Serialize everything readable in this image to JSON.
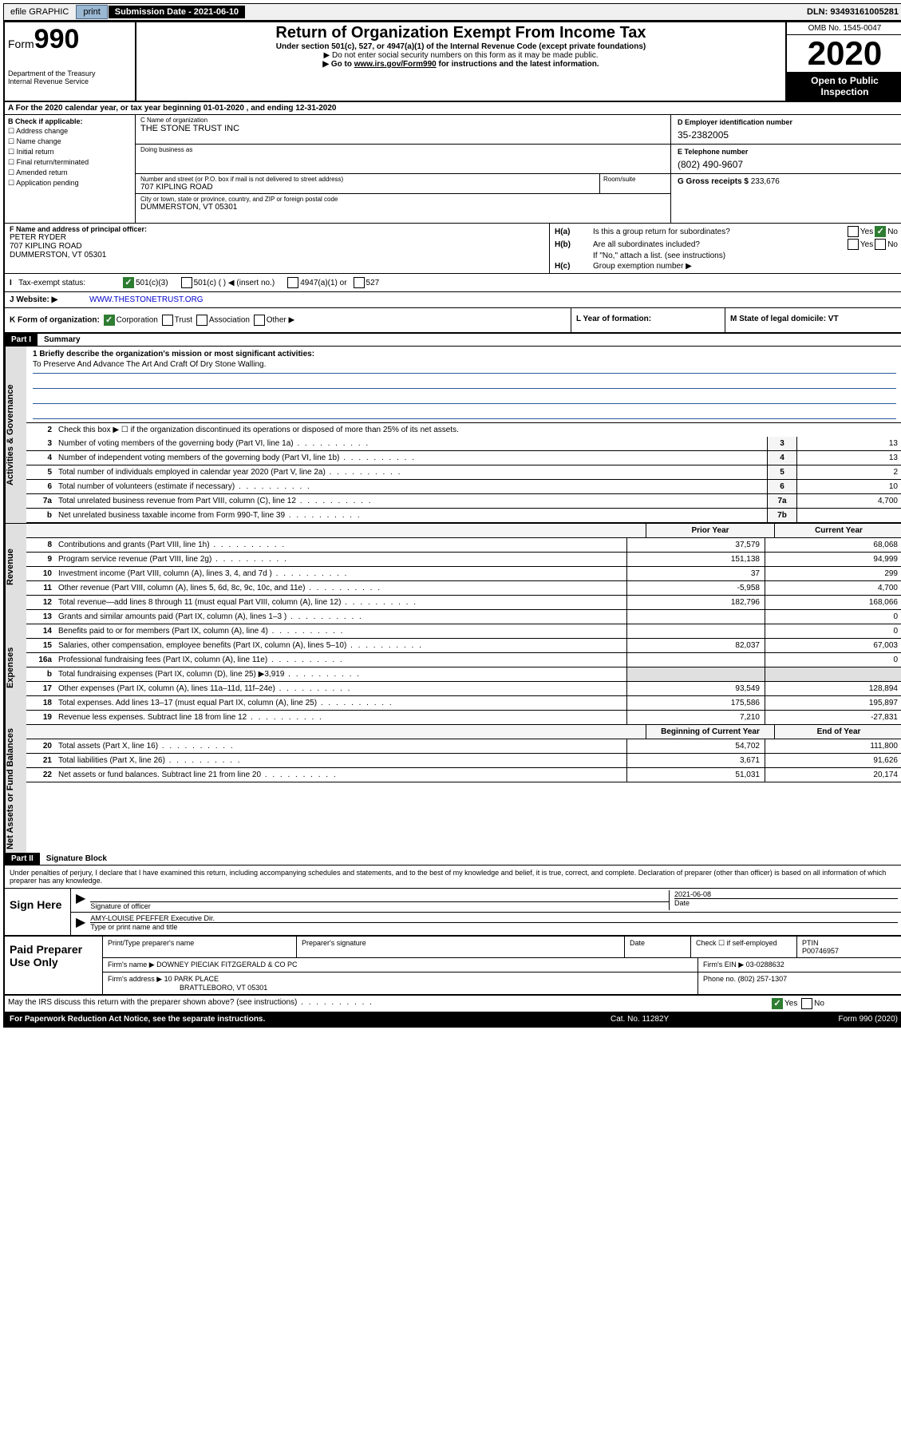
{
  "topbar": {
    "efile": "efile GRAPHIC",
    "print": "print",
    "submission": "Submission Date - 2021-06-10",
    "dln": "DLN: 93493161005281"
  },
  "header": {
    "form_label": "Form",
    "form_number": "990",
    "dept": "Department of the Treasury",
    "irs": "Internal Revenue Service",
    "title": "Return of Organization Exempt From Income Tax",
    "sub1": "Under section 501(c), 527, or 4947(a)(1) of the Internal Revenue Code (except private foundations)",
    "sub2": "▶ Do not enter social security numbers on this form as it may be made public.",
    "sub3_pre": "▶ Go to ",
    "sub3_link": "www.irs.gov/Form990",
    "sub3_post": " for instructions and the latest information.",
    "omb": "OMB No. 1545-0047",
    "year": "2020",
    "open": "Open to Public Inspection"
  },
  "lineA": "A For the 2020 calendar year, or tax year beginning 01-01-2020   , and ending 12-31-2020",
  "boxB": {
    "label": "B Check if applicable:",
    "opts": [
      "Address change",
      "Name change",
      "Initial return",
      "Final return/terminated",
      "Amended return",
      "Application pending"
    ]
  },
  "boxC": {
    "name_label": "C Name of organization",
    "name": "THE STONE TRUST INC",
    "dba_label": "Doing business as",
    "addr_label": "Number and street (or P.O. box if mail is not delivered to street address)",
    "addr": "707 KIPLING ROAD",
    "suite_label": "Room/suite",
    "city_label": "City or town, state or province, country, and ZIP or foreign postal code",
    "city": "DUMMERSTON, VT  05301"
  },
  "boxD": {
    "ein_label": "D Employer identification number",
    "ein": "35-2382005",
    "phone_label": "E Telephone number",
    "phone": "(802) 490-9607",
    "gross_label": "G Gross receipts $",
    "gross": "233,676"
  },
  "boxF": {
    "label": "F  Name and address of principal officer:",
    "name": "PETER RYDER",
    "addr1": "707 KIPLING ROAD",
    "addr2": "DUMMERSTON, VT  05301"
  },
  "boxH": {
    "ha": "Is this a group return for subordinates?",
    "hb": "Are all subordinates included?",
    "hb_note": "If \"No,\" attach a list. (see instructions)",
    "hc": "Group exemption number ▶"
  },
  "taxExempt": {
    "label": "Tax-exempt status:",
    "o1": "501(c)(3)",
    "o2": "501(c) (   ) ◀ (insert no.)",
    "o3": "4947(a)(1) or",
    "o4": "527"
  },
  "website": {
    "label": "J   Website: ▶",
    "url": "WWW.THESTONETRUST.ORG"
  },
  "rowK": {
    "k": "K Form of organization:",
    "corp": "Corporation",
    "trust": "Trust",
    "assoc": "Association",
    "other": "Other ▶",
    "l": "L Year of formation:",
    "m": "M State of legal domicile: VT"
  },
  "part1": {
    "header": "Part I",
    "title": "Summary",
    "line1_label": "1  Briefly describe the organization's mission or most significant activities:",
    "mission": "To Preserve And Advance The Art And Craft Of Dry Stone Walling.",
    "side_ag": "Activities & Governance",
    "side_rev": "Revenue",
    "side_exp": "Expenses",
    "side_net": "Net Assets or Fund Balances",
    "line2": "Check this box ▶ ☐  if the organization discontinued its operations or disposed of more than 25% of its net assets.",
    "rows_ag": [
      {
        "n": "3",
        "desc": "Number of voting members of the governing body (Part VI, line 1a)",
        "key": "3",
        "val": "13"
      },
      {
        "n": "4",
        "desc": "Number of independent voting members of the governing body (Part VI, line 1b)",
        "key": "4",
        "val": "13"
      },
      {
        "n": "5",
        "desc": "Total number of individuals employed in calendar year 2020 (Part V, line 2a)",
        "key": "5",
        "val": "2"
      },
      {
        "n": "6",
        "desc": "Total number of volunteers (estimate if necessary)",
        "key": "6",
        "val": "10"
      },
      {
        "n": "7a",
        "desc": "Total unrelated business revenue from Part VIII, column (C), line 12",
        "key": "7a",
        "val": "4,700"
      },
      {
        "n": "b",
        "desc": "Net unrelated business taxable income from Form 990-T, line 39",
        "key": "7b",
        "val": ""
      }
    ],
    "hdr_prior": "Prior Year",
    "hdr_current": "Current Year",
    "rows_rev": [
      {
        "n": "8",
        "desc": "Contributions and grants (Part VIII, line 1h)",
        "v1": "37,579",
        "v2": "68,068"
      },
      {
        "n": "9",
        "desc": "Program service revenue (Part VIII, line 2g)",
        "v1": "151,138",
        "v2": "94,999"
      },
      {
        "n": "10",
        "desc": "Investment income (Part VIII, column (A), lines 3, 4, and 7d )",
        "v1": "37",
        "v2": "299"
      },
      {
        "n": "11",
        "desc": "Other revenue (Part VIII, column (A), lines 5, 6d, 8c, 9c, 10c, and 11e)",
        "v1": "-5,958",
        "v2": "4,700"
      },
      {
        "n": "12",
        "desc": "Total revenue—add lines 8 through 11 (must equal Part VIII, column (A), line 12)",
        "v1": "182,796",
        "v2": "168,066"
      }
    ],
    "rows_exp": [
      {
        "n": "13",
        "desc": "Grants and similar amounts paid (Part IX, column (A), lines 1–3 )",
        "v1": "",
        "v2": "0"
      },
      {
        "n": "14",
        "desc": "Benefits paid to or for members (Part IX, column (A), line 4)",
        "v1": "",
        "v2": "0"
      },
      {
        "n": "15",
        "desc": "Salaries, other compensation, employee benefits (Part IX, column (A), lines 5–10)",
        "v1": "82,037",
        "v2": "67,003"
      },
      {
        "n": "16a",
        "desc": "Professional fundraising fees (Part IX, column (A), line 11e)",
        "v1": "",
        "v2": "0"
      },
      {
        "n": "b",
        "desc": "Total fundraising expenses (Part IX, column (D), line 25) ▶3,919",
        "v1": "",
        "v2": "",
        "shaded": true
      },
      {
        "n": "17",
        "desc": "Other expenses (Part IX, column (A), lines 11a–11d, 11f–24e)",
        "v1": "93,549",
        "v2": "128,894"
      },
      {
        "n": "18",
        "desc": "Total expenses. Add lines 13–17 (must equal Part IX, column (A), line 25)",
        "v1": "175,586",
        "v2": "195,897"
      },
      {
        "n": "19",
        "desc": "Revenue less expenses. Subtract line 18 from line 12",
        "v1": "7,210",
        "v2": "-27,831"
      }
    ],
    "hdr_begin": "Beginning of Current Year",
    "hdr_end": "End of Year",
    "rows_net": [
      {
        "n": "20",
        "desc": "Total assets (Part X, line 16)",
        "v1": "54,702",
        "v2": "111,800"
      },
      {
        "n": "21",
        "desc": "Total liabilities (Part X, line 26)",
        "v1": "3,671",
        "v2": "91,626"
      },
      {
        "n": "22",
        "desc": "Net assets or fund balances. Subtract line 21 from line 20",
        "v1": "51,031",
        "v2": "20,174"
      }
    ]
  },
  "part2": {
    "header": "Part II",
    "title": "Signature Block",
    "perjury": "Under penalties of perjury, I declare that I have examined this return, including accompanying schedules and statements, and to the best of my knowledge and belief, it is true, correct, and complete. Declaration of preparer (other than officer) is based on all information of which preparer has any knowledge.",
    "sign_here": "Sign Here",
    "sig_officer": "Signature of officer",
    "sig_date": "2021-06-08",
    "date_label": "Date",
    "officer_name": "AMY-LOUISE PFEFFER  Executive Dir.",
    "type_name": "Type or print name and title",
    "paid": "Paid Preparer Use Only",
    "prep_name_label": "Print/Type preparer's name",
    "prep_sig_label": "Preparer's signature",
    "prep_date_label": "Date",
    "check_self": "Check ☐ if self-employed",
    "ptin_label": "PTIN",
    "ptin": "P00746957",
    "firm_name_label": "Firm's name    ▶",
    "firm_name": "DOWNEY PIECIAK FITZGERALD & CO PC",
    "firm_ein_label": "Firm's EIN ▶",
    "firm_ein": "03-0288632",
    "firm_addr_label": "Firm's address ▶",
    "firm_addr1": "10 PARK PLACE",
    "firm_addr2": "BRATTLEBORO, VT  05301",
    "phone_label": "Phone no.",
    "phone": "(802) 257-1307",
    "discuss": "May the IRS discuss this return with the preparer shown above? (see instructions)"
  },
  "footer": {
    "paperwork": "For Paperwork Reduction Act Notice, see the separate instructions.",
    "cat": "Cat. No. 11282Y",
    "form": "Form 990 (2020)"
  }
}
